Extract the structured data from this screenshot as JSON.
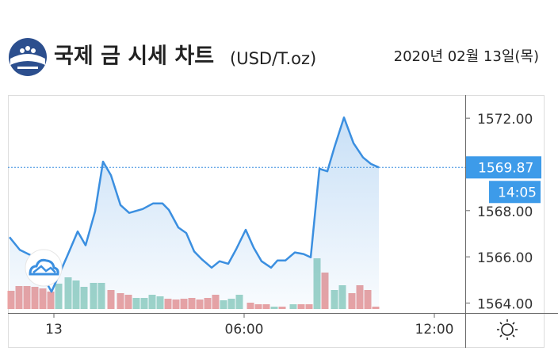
{
  "chart_data": {
    "type": "line",
    "title": "국제 금 시세 차트",
    "unit": "(USD/T.oz)",
    "date": "2020년 02월 13일(목)",
    "color": "#3b8fe0",
    "x": [
      -1.4,
      -1.075,
      -0.7,
      -0.075,
      0.425,
      0.75,
      1.0,
      1.3,
      1.55,
      1.8,
      2.1,
      2.375,
      2.8,
      3.125,
      3.425,
      3.625,
      3.925,
      4.175,
      4.425,
      4.675,
      4.975,
      5.225,
      5.5,
      5.75,
      6.05,
      6.3,
      6.55,
      6.85,
      7.05,
      7.3,
      7.6,
      7.875,
      8.1,
      8.375,
      8.625,
      8.85,
      9.15,
      9.45,
      9.75,
      10.0,
      10.25
    ],
    "values": [
      1566.85,
      1566.3,
      1566.05,
      1564.49,
      1566.05,
      1567.1,
      1566.5,
      1567.97,
      1570.12,
      1569.53,
      1568.24,
      1567.9,
      1568.07,
      1568.31,
      1568.31,
      1568.03,
      1567.27,
      1567.03,
      1566.23,
      1565.88,
      1565.53,
      1565.81,
      1565.7,
      1566.33,
      1567.17,
      1566.4,
      1565.81,
      1565.53,
      1565.84,
      1565.84,
      1566.19,
      1566.12,
      1565.98,
      1569.81,
      1569.7,
      1570.75,
      1572.03,
      1570.92,
      1570.3,
      1570.02,
      1569.87
    ],
    "xlim": [
      -1.45,
      12.975
    ],
    "xticks": [
      {
        "value": 0,
        "label": "13"
      },
      {
        "value": 6,
        "label": "06:00"
      },
      {
        "value": 12,
        "label": "12:00"
      }
    ],
    "ylim": [
      1563.57,
      1573.0
    ],
    "yticks": [
      {
        "value": 1564,
        "label": "1564.00"
      },
      {
        "value": 1566,
        "label": "1566.00"
      },
      {
        "value": 1568,
        "label": "1568.00"
      },
      {
        "value": 1572,
        "label": "1572.00"
      }
    ],
    "last_price": 1569.87,
    "last_time": "14:05",
    "y2lim": [
      0,
      270
    ],
    "volume": {
      "axis": "y2",
      "x": [
        -1.35,
        -1.1,
        -0.85,
        -0.6,
        -0.35,
        -0.1,
        0.15,
        0.45,
        0.7,
        0.95,
        1.25,
        1.5,
        1.8,
        2.1,
        2.35,
        2.6,
        2.85,
        3.1,
        3.35,
        3.6,
        3.85,
        4.1,
        4.35,
        4.6,
        4.85,
        5.1,
        5.35,
        5.6,
        5.85,
        6.2,
        6.45,
        6.7,
        6.95,
        7.2,
        7.55,
        7.8,
        8.05,
        8.3,
        8.55,
        8.85,
        9.1,
        9.4,
        9.65,
        9.9,
        10.15
      ],
      "values": [
        23,
        29,
        29,
        28,
        26,
        22,
        32,
        40,
        36,
        28,
        33,
        33,
        24,
        20,
        18,
        14,
        14,
        18,
        16,
        13,
        12,
        13,
        14,
        12,
        14,
        18,
        11,
        13,
        18,
        8,
        6,
        6,
        3,
        3,
        6,
        6,
        6,
        64,
        46,
        24,
        30,
        20,
        30,
        24,
        3
      ],
      "colors": [
        "#eba3a3",
        "#eba3a3",
        "#eba3a3",
        "#eba3a3",
        "#eba3a3",
        "#eba3a3",
        "#9fd4c8",
        "#9fd4c8",
        "#9fd4c8",
        "#9fd4c8",
        "#9fd4c8",
        "#9fd4c8",
        "#eba3a3",
        "#eba3a3",
        "#eba3a3",
        "#9fd4c8",
        "#9fd4c8",
        "#9fd4c8",
        "#9fd4c8",
        "#eba3a3",
        "#eba3a3",
        "#eba3a3",
        "#eba3a3",
        "#eba3a3",
        "#eba3a3",
        "#eba3a3",
        "#9fd4c8",
        "#9fd4c8",
        "#9fd4c8",
        "#eba3a3",
        "#eba3a3",
        "#eba3a3",
        "#9fd4c8",
        "#eba3a3",
        "#9fd4c8",
        "#eba3a3",
        "#eba3a3",
        "#9fd4c8",
        "#eba3a3",
        "#9fd4c8",
        "#9fd4c8",
        "#eba3a3",
        "#eba3a3",
        "#eba3a3",
        "#eba3a3"
      ]
    }
  }
}
